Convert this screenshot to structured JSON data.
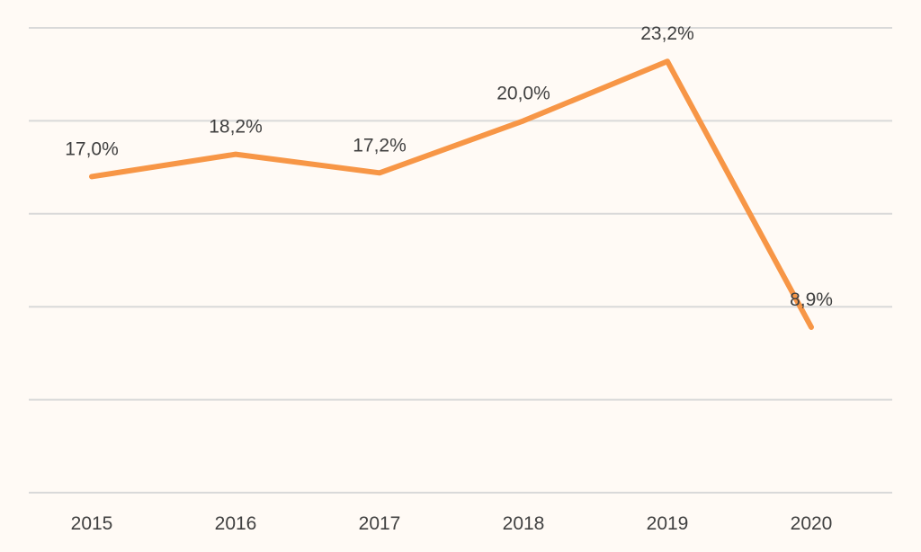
{
  "chart_data": {
    "type": "line",
    "title": "",
    "xlabel": "",
    "ylabel": "",
    "categories": [
      "2015",
      "2016",
      "2017",
      "2018",
      "2019",
      "2020"
    ],
    "series": [
      {
        "values": [
          17.0,
          18.2,
          17.2,
          20.0,
          23.2,
          8.9
        ],
        "data_labels": [
          "17,0%",
          "18,2%",
          "17,2%",
          "20,0%",
          "23,2%",
          "8,9%"
        ]
      }
    ],
    "ylim": [
      0,
      25
    ],
    "y_axis_visible": false,
    "grid": true,
    "legend": "none",
    "colors": {
      "line": "#F79646",
      "grid": "#D9D9D9",
      "text": "#404040",
      "background": "#FFFAF5"
    }
  }
}
